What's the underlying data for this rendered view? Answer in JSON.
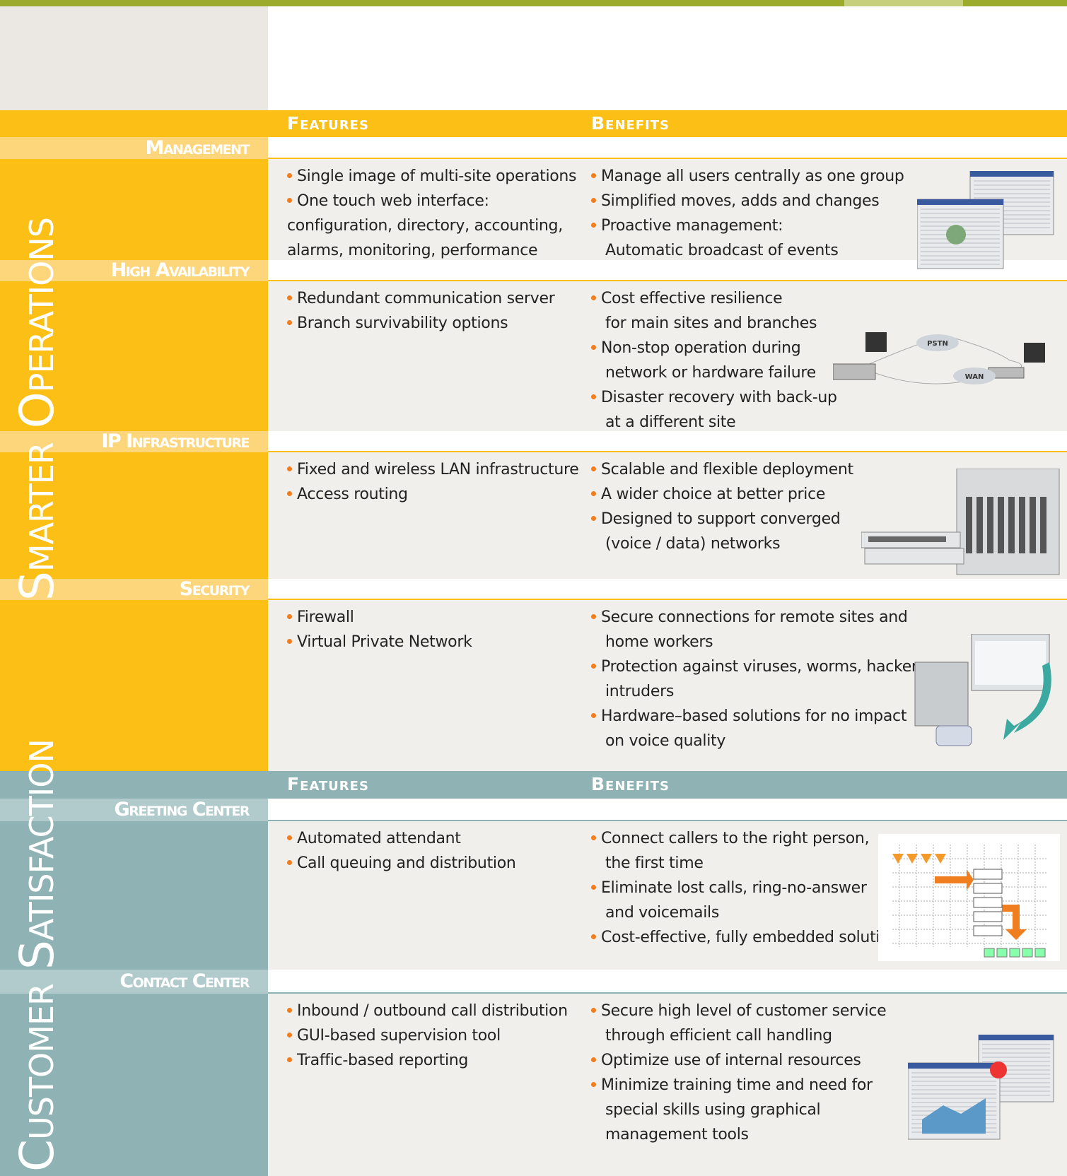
{
  "sections": [
    {
      "title": "Smarter Operations",
      "header": {
        "features": "Features",
        "benefits": "Benefits"
      },
      "rows": [
        {
          "label": "Management",
          "features": [
            [
              "Single image of multi-site operations"
            ],
            [
              "One touch web interface:",
              "configuration, directory, accounting,",
              "alarms, monitoring, performance"
            ]
          ],
          "benefits": [
            [
              "Manage all users centrally as one group"
            ],
            [
              "Simplified moves, adds and changes"
            ],
            [
              "Proactive management:",
              "Automatic broadcast of events"
            ]
          ]
        },
        {
          "label": "High Availability",
          "features": [
            [
              "Redundant communication server"
            ],
            [
              "Branch survivability options"
            ]
          ],
          "benefits": [
            [
              "Cost effective resilience",
              "for main sites and branches"
            ],
            [
              "Non-stop operation during",
              "network or hardware failure"
            ],
            [
              "Disaster recovery with back-up",
              "at a different site"
            ]
          ]
        },
        {
          "label": "IP Infrastructure",
          "features": [
            [
              "Fixed and wireless LAN infrastructure"
            ],
            [
              "Access routing"
            ]
          ],
          "benefits": [
            [
              "Scalable and flexible deployment"
            ],
            [
              "A wider choice at better price"
            ],
            [
              "Designed to support converged",
              "(voice / data) networks"
            ]
          ]
        },
        {
          "label": "Security",
          "features": [
            [
              "Firewall"
            ],
            [
              "Virtual Private Network"
            ]
          ],
          "benefits": [
            [
              "Secure connections for remote sites and",
              "home workers"
            ],
            [
              "Protection against viruses, worms, hackers,",
              "intruders"
            ],
            [
              "Hardware–based solutions for no impact",
              "on voice quality"
            ]
          ]
        }
      ]
    },
    {
      "title": "Customer Satisfaction",
      "header": {
        "features": "Features",
        "benefits": "Benefits"
      },
      "rows": [
        {
          "label": "Greeting Center",
          "features": [
            [
              "Automated attendant"
            ],
            [
              "Call queuing and distribution"
            ]
          ],
          "benefits": [
            [
              "Connect callers to the right person,",
              "the first time"
            ],
            [
              "Eliminate lost calls, ring-no-answer",
              "and voicemails"
            ],
            [
              "Cost-effective, fully embedded solution"
            ]
          ]
        },
        {
          "label": "Contact Center",
          "features": [
            [
              "Inbound / outbound call distribution"
            ],
            [
              "GUI-based supervision tool"
            ],
            [
              "Traffic-based reporting"
            ]
          ],
          "benefits": [
            [
              "Secure high level of customer service",
              "through efficient call handling"
            ],
            [
              "Optimize use of internal resources"
            ],
            [
              "Minimize training time and need for",
              "special skills using graphical",
              "management tools"
            ]
          ]
        }
      ]
    }
  ],
  "images": {
    "pstn": "PSTN",
    "wan": "WAN"
  }
}
